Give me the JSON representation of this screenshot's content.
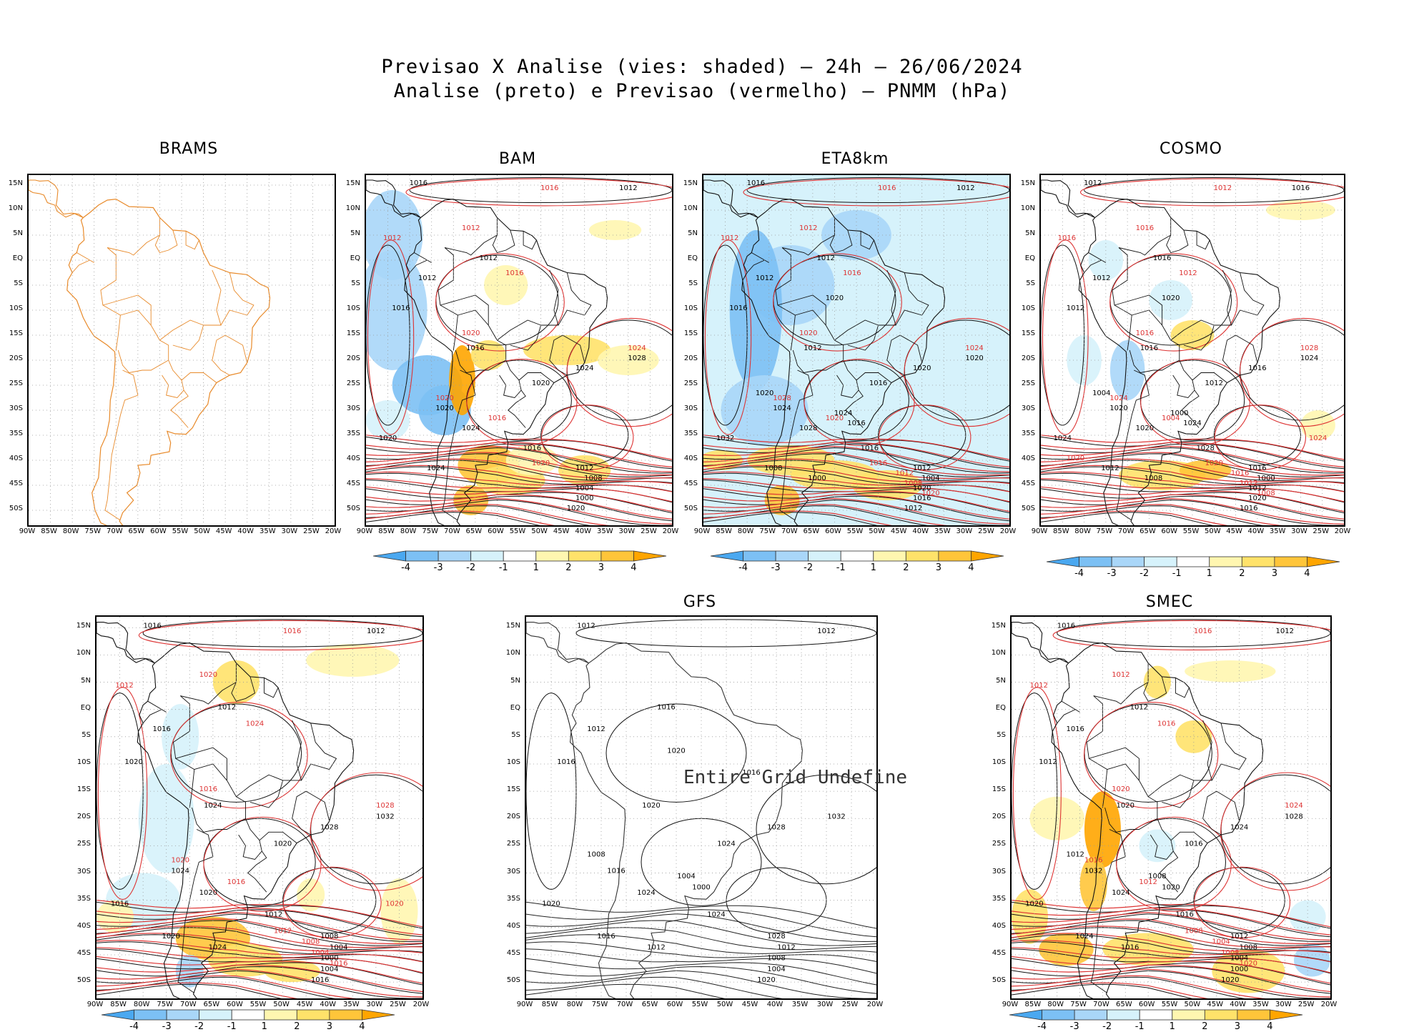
{
  "header": {
    "title_line1": "Previsao X Analise (vies: shaded) — 24h — 26/06/2024",
    "title_line2": "Analise (preto) e Previsao (vermelho) — PNMM (hPa)"
  },
  "axes": {
    "lon_labels": [
      "90W",
      "85W",
      "80W",
      "75W",
      "70W",
      "65W",
      "60W",
      "55W",
      "50W",
      "45W",
      "40W",
      "35W",
      "30W",
      "25W",
      "20W"
    ],
    "lat_labels": [
      "15N",
      "10N",
      "5N",
      "EQ",
      "5S",
      "10S",
      "15S",
      "20S",
      "25S",
      "30S",
      "35S",
      "40S",
      "45S",
      "50S"
    ]
  },
  "colorbar": {
    "labels": [
      "-4",
      "-3",
      "-2",
      "-1",
      "1",
      "2",
      "3",
      "4"
    ],
    "colors": [
      "#4aa8f0",
      "#7cc0f4",
      "#a9d6f8",
      "#d6f2fb",
      "#ffffff",
      "#fff6b0",
      "#ffe26a",
      "#ffc53a",
      "#ffa500"
    ]
  },
  "colors": {
    "analysis": "#000000",
    "forecast": "#dd3333",
    "coastline_brams": "#e88a2a"
  },
  "panels": [
    {
      "id": "brams",
      "title": "BRAMS",
      "isobars_black": [],
      "isobars_red": []
    },
    {
      "id": "bam",
      "title": "BAM",
      "isobars_black": [
        "1012",
        "1016",
        "1012",
        "1012",
        "1016",
        "1016",
        "1020",
        "1024",
        "1028",
        "1020",
        "1024",
        "1020",
        "1016",
        "1012",
        "1008",
        "1004",
        "1000",
        "1020",
        "1024"
      ],
      "isobars_red": [
        "1012",
        "1016",
        "1012",
        "1016",
        "1020",
        "1024",
        "1020",
        "1016",
        "1020"
      ]
    },
    {
      "id": "eta8km",
      "title": "ETA8km",
      "isobars_black": [
        "1012",
        "1016",
        "1012",
        "1012",
        "1016",
        "1012",
        "1016",
        "1020",
        "1020",
        "1024",
        "1028",
        "1032",
        "1016",
        "1012",
        "1004",
        "1020",
        "1016",
        "1012",
        "1008",
        "1000",
        "1020",
        "1024",
        "1016",
        "1020"
      ],
      "isobars_red": [
        "1012",
        "1016",
        "1012",
        "1016",
        "1020",
        "1024",
        "1028",
        "1020",
        "1016",
        "1012",
        "1008",
        "1020"
      ]
    },
    {
      "id": "cosmo",
      "title": "COSMO",
      "isobars_black": [
        "1016",
        "1012",
        "1016",
        "1012",
        "1012",
        "1016",
        "1012",
        "1016",
        "1024",
        "1020",
        "1020",
        "1024",
        "1028",
        "1016",
        "1000",
        "1012",
        "1020",
        "1016",
        "1012",
        "1008",
        "1004",
        "1000",
        "1024",
        "1020"
      ],
      "isobars_red": [
        "1016",
        "1012",
        "1016",
        "1012",
        "1016",
        "1028",
        "1024",
        "1004",
        "1020",
        "1016",
        "1012",
        "1008",
        "1024",
        "1020"
      ]
    },
    {
      "id": "unnamed",
      "title": "",
      "isobars_black": [
        "1012",
        "1016",
        "1012",
        "1016",
        "1020",
        "1024",
        "1020",
        "1028",
        "1032",
        "1024",
        "1020",
        "1016",
        "1012",
        "1008",
        "1004",
        "1000",
        "1004",
        "1016",
        "1020",
        "1024"
      ],
      "isobars_red": [
        "1012",
        "1016",
        "1020",
        "1024",
        "1016",
        "1028",
        "1020",
        "1016",
        "1012",
        "1008",
        "1004",
        "1016",
        "1020"
      ]
    },
    {
      "id": "gfs",
      "title": "GFS",
      "undefined_text": "Entire Grid Undefine",
      "isobars_black": [
        "1012",
        "1012",
        "1016",
        "1012",
        "1016",
        "1020",
        "1024",
        "1028",
        "1032",
        "1016",
        "1024",
        "1020",
        "1024",
        "1028",
        "1012",
        "1008",
        "1004",
        "1020",
        "1016",
        "1012",
        "1008",
        "1004",
        "1000",
        "1020",
        "1016"
      ],
      "isobars_red": []
    },
    {
      "id": "smec",
      "title": "SMEC",
      "isobars_black": [
        "1012",
        "1016",
        "1012",
        "1016",
        "1012",
        "1020",
        "1016",
        "1024",
        "1028",
        "1032",
        "1024",
        "1020",
        "1016",
        "1012",
        "1008",
        "1004",
        "1000",
        "1020",
        "1024",
        "1016",
        "1012",
        "1008",
        "1020"
      ],
      "isobars_red": [
        "1012",
        "1016",
        "1012",
        "1016",
        "1020",
        "1024",
        "1016",
        "1012",
        "1008",
        "1004",
        "1008",
        "1020"
      ]
    }
  ]
}
